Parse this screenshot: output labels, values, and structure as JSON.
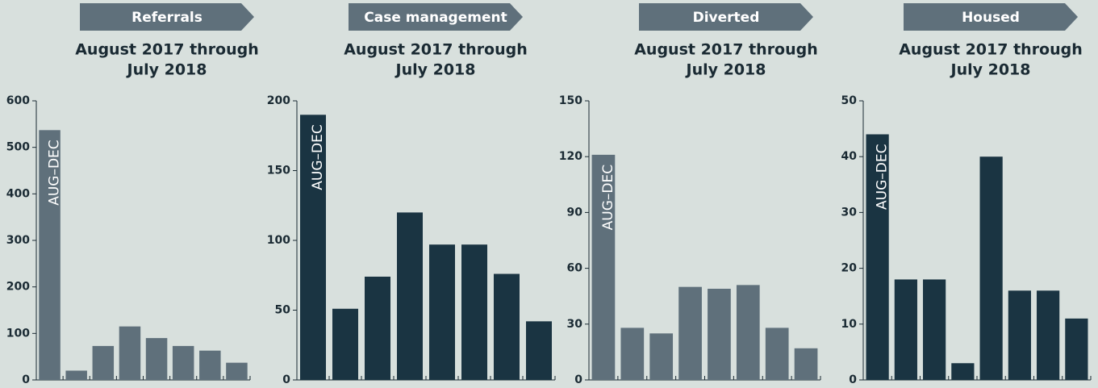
{
  "chart_data": [
    {
      "type": "bar",
      "title": "Referrals",
      "subtitle": [
        "August 2017 through",
        "July 2018"
      ],
      "categories": [
        "AUG–DEC",
        null,
        null,
        null,
        null,
        null,
        null,
        null
      ],
      "values": [
        537,
        20,
        73,
        115,
        90,
        73,
        63,
        37
      ],
      "color": "#5f707b",
      "ylim": [
        0,
        600
      ],
      "yticks": [
        0,
        100,
        200,
        300,
        400,
        500,
        600
      ],
      "grid": false
    },
    {
      "type": "bar",
      "title": "Case management",
      "subtitle": [
        "August 2017 through",
        "July 2018"
      ],
      "categories": [
        "AUG–DEC",
        null,
        null,
        null,
        null,
        null,
        null,
        null
      ],
      "values": [
        190,
        51,
        74,
        120,
        97,
        97,
        76,
        42
      ],
      "color": "#1a3442",
      "ylim": [
        0,
        200
      ],
      "yticks": [
        0,
        50,
        100,
        150,
        200
      ],
      "grid": false
    },
    {
      "type": "bar",
      "title": "Diverted",
      "subtitle": [
        "August 2017 through",
        "July 2018"
      ],
      "categories": [
        "AUG–DEC",
        null,
        null,
        null,
        null,
        null,
        null,
        null
      ],
      "values": [
        121,
        28,
        25,
        50,
        49,
        51,
        28,
        17
      ],
      "color": "#5f707b",
      "ylim": [
        0,
        150
      ],
      "yticks": [
        0,
        30,
        60,
        90,
        120,
        150
      ],
      "grid": false
    },
    {
      "type": "bar",
      "title": "Housed",
      "subtitle": [
        "August 2017 through",
        "July 2018"
      ],
      "categories": [
        "AUG–DEC",
        null,
        null,
        null,
        null,
        null,
        null,
        null
      ],
      "values": [
        44,
        18,
        18,
        3,
        40,
        16,
        16,
        11
      ],
      "color": "#1a3442",
      "ylim": [
        0,
        50
      ],
      "yticks": [
        0,
        10,
        20,
        30,
        40,
        50
      ],
      "grid": false
    }
  ]
}
